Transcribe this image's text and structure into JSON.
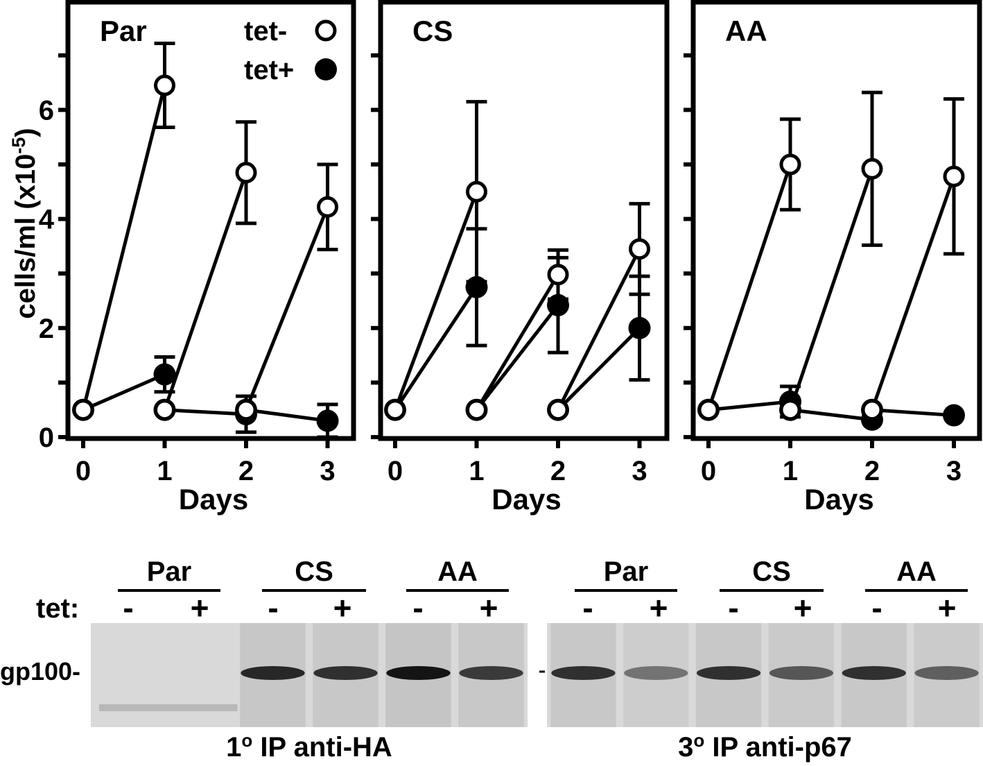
{
  "chart_data": [
    {
      "type": "line",
      "panel_label": "Par",
      "xlabel": "Days",
      "ylabel": "cells/ml (x10",
      "ylabel_sup": "-5",
      "ylabel_close": ")",
      "x_ticks": [
        "0",
        "1",
        "2",
        "3"
      ],
      "y_ticks": [
        "0",
        "2",
        "4",
        "6"
      ],
      "xlim": [
        0,
        3
      ],
      "ylim": [
        0,
        7.9
      ],
      "legend": [
        {
          "label": "tet-",
          "marker": "open-circle"
        },
        {
          "label": "tet+",
          "marker": "filled-circle"
        }
      ],
      "series": [
        {
          "marker": "open",
          "x": [
            0,
            1
          ],
          "y": [
            0.5,
            6.45
          ],
          "err": [
            null,
            0.77
          ]
        },
        {
          "marker": "open",
          "x": [
            1,
            2
          ],
          "y": [
            0.5,
            4.85
          ],
          "err": [
            null,
            0.93
          ]
        },
        {
          "marker": "open",
          "x": [
            2,
            3
          ],
          "y": [
            0.5,
            4.22
          ],
          "err": [
            null,
            0.78
          ]
        },
        {
          "marker": "filled",
          "x": [
            0,
            1
          ],
          "y": [
            0.5,
            1.15
          ],
          "err": [
            null,
            0.32
          ]
        },
        {
          "marker": "filled",
          "x": [
            1,
            2
          ],
          "y": [
            0.5,
            0.42
          ],
          "err": [
            null,
            0.33
          ]
        },
        {
          "marker": "filled",
          "x": [
            2,
            3
          ],
          "y": [
            0.5,
            0.3
          ],
          "err": [
            null,
            0.3
          ]
        }
      ]
    },
    {
      "type": "line",
      "panel_label": "CS",
      "xlabel": "Days",
      "x_ticks": [
        "0",
        "1",
        "2",
        "3"
      ],
      "xlim": [
        0,
        3
      ],
      "ylim": [
        0,
        7.9
      ],
      "series": [
        {
          "marker": "open",
          "x": [
            0,
            1
          ],
          "y": [
            0.5,
            4.5
          ],
          "err": [
            null,
            1.65
          ]
        },
        {
          "marker": "open",
          "x": [
            1,
            2
          ],
          "y": [
            0.5,
            2.98
          ],
          "err": [
            null,
            0.45
          ]
        },
        {
          "marker": "open",
          "x": [
            2,
            3
          ],
          "y": [
            0.5,
            3.45
          ],
          "err": [
            null,
            0.83
          ]
        },
        {
          "marker": "filled",
          "x": [
            0,
            1
          ],
          "y": [
            0.5,
            2.75
          ],
          "err": [
            null,
            1.07
          ]
        },
        {
          "marker": "filled",
          "x": [
            1,
            2
          ],
          "y": [
            0.5,
            2.42
          ],
          "err": [
            null,
            0.87
          ]
        },
        {
          "marker": "filled",
          "x": [
            2,
            3
          ],
          "y": [
            0.5,
            2.0
          ],
          "err": [
            null,
            0.95
          ]
        }
      ]
    },
    {
      "type": "line",
      "panel_label": "AA",
      "xlabel": "Days",
      "x_ticks": [
        "0",
        "1",
        "2",
        "3"
      ],
      "xlim": [
        0,
        3
      ],
      "ylim": [
        0,
        7.9
      ],
      "series": [
        {
          "marker": "open",
          "x": [
            0,
            1
          ],
          "y": [
            0.5,
            5.0
          ],
          "err": [
            null,
            0.83
          ]
        },
        {
          "marker": "open",
          "x": [
            1,
            2
          ],
          "y": [
            0.5,
            4.92
          ],
          "err": [
            null,
            1.4
          ]
        },
        {
          "marker": "open",
          "x": [
            2,
            3
          ],
          "y": [
            0.5,
            4.78
          ],
          "err": [
            null,
            1.42
          ]
        },
        {
          "marker": "filled",
          "x": [
            0,
            1
          ],
          "y": [
            0.5,
            0.65
          ],
          "err": [
            null,
            0.28
          ]
        },
        {
          "marker": "filled",
          "x": [
            1,
            2
          ],
          "y": [
            0.5,
            0.32
          ],
          "err": [
            null,
            0.0
          ]
        },
        {
          "marker": "filled",
          "x": [
            2,
            3
          ],
          "y": [
            0.5,
            0.4
          ],
          "err": [
            null,
            0.0
          ]
        }
      ]
    }
  ],
  "blots": {
    "tet_label": "tet:",
    "marker_label": "gp100-",
    "left": {
      "caption_prefix": "1",
      "caption_sup": "o",
      "caption_rest": " IP anti-HA",
      "groups": [
        "Par",
        "CS",
        "AA"
      ],
      "lanes": [
        "-",
        "+",
        "-",
        "+",
        "-",
        "+"
      ],
      "band_intensity": [
        0.0,
        0.0,
        0.85,
        0.8,
        0.95,
        0.75
      ]
    },
    "right": {
      "caption_prefix": "3",
      "caption_sup": "o",
      "caption_rest": " IP anti-p67",
      "groups": [
        "Par",
        "CS",
        "AA"
      ],
      "lanes": [
        "-",
        "+",
        "-",
        "+",
        "-",
        "+"
      ],
      "band_intensity": [
        0.8,
        0.45,
        0.8,
        0.6,
        0.8,
        0.55
      ]
    }
  }
}
